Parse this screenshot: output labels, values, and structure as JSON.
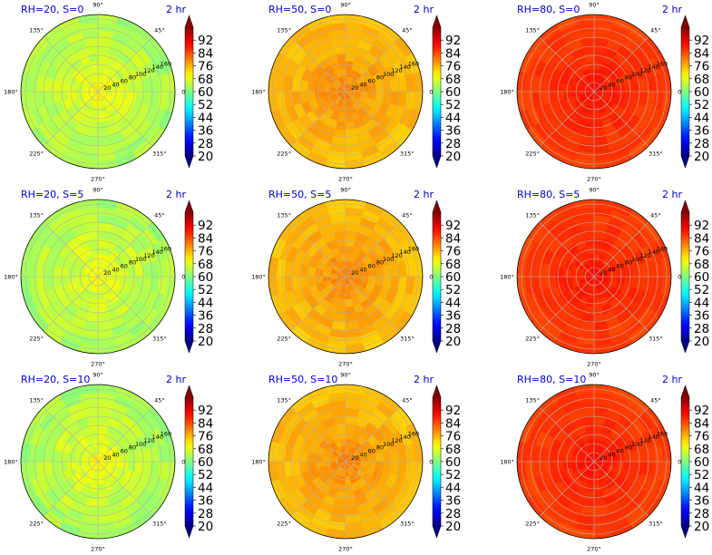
{
  "chart_data": {
    "type": "heatmap",
    "projection": "polar",
    "grid": true,
    "colormap": "jet",
    "color_scale": {
      "min": 20,
      "max": 100,
      "ticks": [
        20,
        28,
        36,
        44,
        52,
        60,
        68,
        76,
        84,
        92
      ]
    },
    "angle_ticks": [
      "0°",
      "45°",
      "90°",
      "135°",
      "180°",
      "225°",
      "270°",
      "315°"
    ],
    "radial_ticks": [
      "20",
      "40",
      "60",
      "80",
      "100",
      "120",
      "140",
      "160"
    ],
    "time_label": "2 hr",
    "panels": [
      {
        "title": "RH=20, S=0",
        "center_value": 72,
        "edge_value": 63,
        "noise": 2.5
      },
      {
        "title": "RH=50, S=0",
        "center_value": 81,
        "edge_value": 75,
        "noise": 1.8
      },
      {
        "title": "RH=80, S=0",
        "center_value": 90,
        "edge_value": 85,
        "noise": 1.2
      },
      {
        "title": "RH=20, S=5",
        "center_value": 72,
        "edge_value": 63,
        "noise": 2.5
      },
      {
        "title": "RH=50, S=5",
        "center_value": 81,
        "edge_value": 75,
        "noise": 1.8
      },
      {
        "title": "RH=80, S=5",
        "center_value": 90,
        "edge_value": 85,
        "noise": 1.2
      },
      {
        "title": "RH=20, S=10",
        "center_value": 72,
        "edge_value": 63,
        "noise": 2.5
      },
      {
        "title": "RH=50, S=10",
        "center_value": 81,
        "edge_value": 75,
        "noise": 1.8
      },
      {
        "title": "RH=80, S=10",
        "center_value": 90,
        "edge_value": 85,
        "noise": 1.2
      }
    ]
  }
}
